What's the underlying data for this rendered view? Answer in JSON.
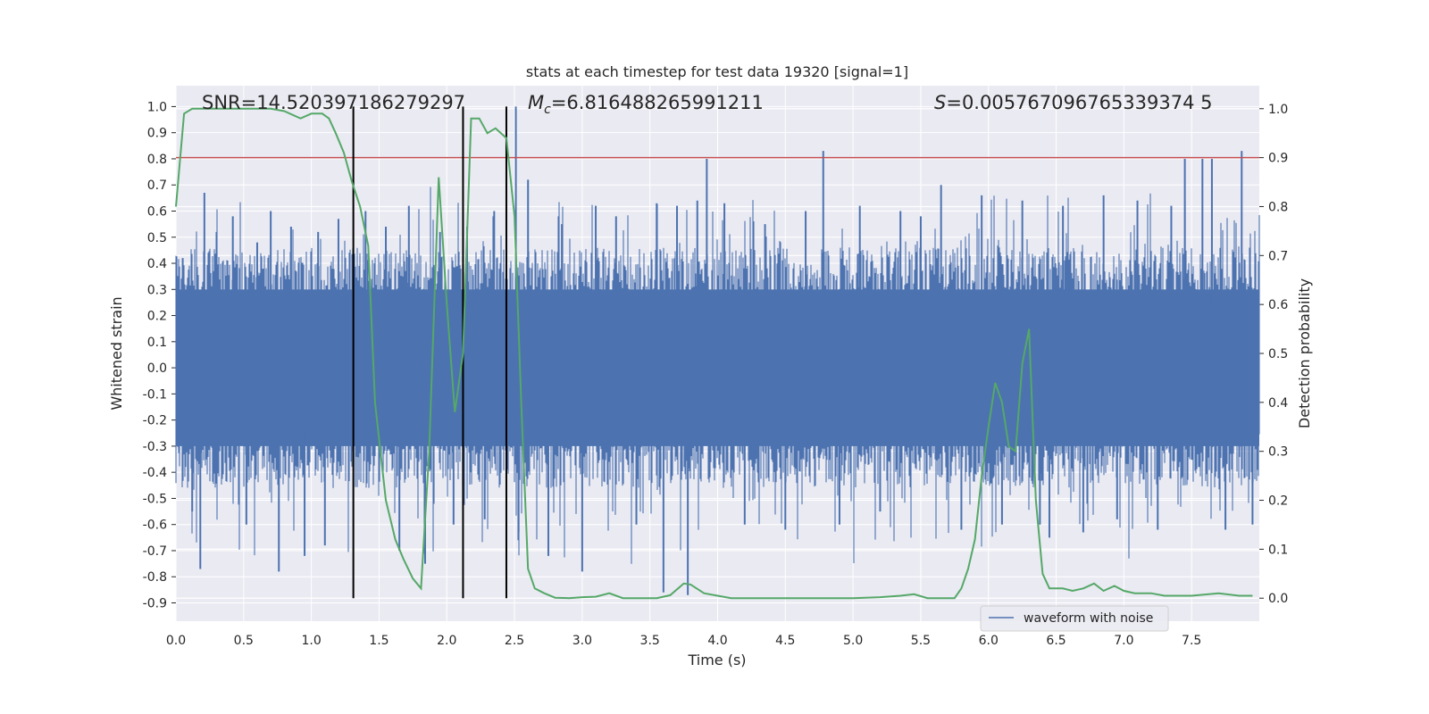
{
  "chart_data": {
    "type": "line",
    "title": "stats at each timestep for test data 19320 [signal=1]",
    "xlabel": "Time (s)",
    "ylabel_left": "Whitened strain",
    "ylabel_right": "Detection probability",
    "xlim": [
      0.0,
      8.0
    ],
    "ylim_left": [
      -0.97,
      1.08
    ],
    "ylim_right": [
      -0.047,
      1.047
    ],
    "x_ticks": [
      "0.0",
      "0.5",
      "1.0",
      "1.5",
      "2.0",
      "2.5",
      "3.0",
      "3.5",
      "4.0",
      "4.5",
      "5.0",
      "5.5",
      "6.0",
      "6.5",
      "7.0",
      "7.5"
    ],
    "y_ticks_left": [
      "1.0",
      "0.9",
      "0.8",
      "0.7",
      "0.6",
      "0.5",
      "0.4",
      "0.3",
      "0.2",
      "0.1",
      "0.0",
      "-0.1",
      "-0.2",
      "-0.3",
      "-0.4",
      "-0.5",
      "-0.6",
      "-0.7",
      "-0.8",
      "-0.9"
    ],
    "y_ticks_right": [
      "1.0",
      "0.9",
      "0.8",
      "0.7",
      "0.6",
      "0.5",
      "0.4",
      "0.3",
      "0.2",
      "0.1",
      "0.0"
    ],
    "grid": true,
    "legend": {
      "location": "lower-right",
      "entries": [
        "waveform with noise"
      ]
    },
    "annotations": {
      "snr": "SNR=14.520397186279297",
      "mc_prefix": "M",
      "mc_sub": "c",
      "mc_value": "=6.816488265991211",
      "s_prefix": "S",
      "s_value": "=0.005767096765339374 5"
    },
    "threshold_line": {
      "axis": "right",
      "value": 0.9,
      "color": "#c44e52"
    },
    "vertical_markers": [
      1.31,
      2.12,
      2.44
    ],
    "series": [
      {
        "name": "waveform with noise",
        "axis": "left",
        "color": "#4c72b0",
        "kind": "dense-noise-envelope",
        "band": [
          -0.3,
          0.3
        ],
        "spikes": [
          {
            "t": 0.05,
            "v": 0.42
          },
          {
            "t": 0.12,
            "v": -0.55
          },
          {
            "t": 0.18,
            "v": -0.77
          },
          {
            "t": 0.21,
            "v": 0.67
          },
          {
            "t": 0.3,
            "v": 0.52
          },
          {
            "t": 0.42,
            "v": 0.58
          },
          {
            "t": 0.52,
            "v": -0.6
          },
          {
            "t": 0.6,
            "v": 0.48
          },
          {
            "t": 0.7,
            "v": 0.6
          },
          {
            "t": 0.76,
            "v": -0.78
          },
          {
            "t": 0.85,
            "v": 0.54
          },
          {
            "t": 0.95,
            "v": -0.72
          },
          {
            "t": 1.05,
            "v": 0.52
          },
          {
            "t": 1.1,
            "v": -0.68
          },
          {
            "t": 1.2,
            "v": 0.57
          },
          {
            "t": 1.4,
            "v": 0.6
          },
          {
            "t": 1.55,
            "v": 0.54
          },
          {
            "t": 1.65,
            "v": -0.7
          },
          {
            "t": 1.72,
            "v": 0.62
          },
          {
            "t": 1.84,
            "v": -0.75
          },
          {
            "t": 1.95,
            "v": 0.52
          },
          {
            "t": 2.05,
            "v": -0.6
          },
          {
            "t": 2.15,
            "v": 0.54
          },
          {
            "t": 2.28,
            "v": -0.58
          },
          {
            "t": 2.35,
            "v": 0.6
          },
          {
            "t": 2.51,
            "v": 1.0
          },
          {
            "t": 2.53,
            "v": -0.63
          },
          {
            "t": 2.6,
            "v": 0.72
          },
          {
            "t": 2.75,
            "v": -0.72
          },
          {
            "t": 2.85,
            "v": 0.55
          },
          {
            "t": 3.0,
            "v": -0.78
          },
          {
            "t": 3.1,
            "v": 0.62
          },
          {
            "t": 3.25,
            "v": 0.58
          },
          {
            "t": 3.4,
            "v": -0.6
          },
          {
            "t": 3.55,
            "v": 0.63
          },
          {
            "t": 3.6,
            "v": -0.86
          },
          {
            "t": 3.7,
            "v": 0.62
          },
          {
            "t": 3.78,
            "v": -0.87
          },
          {
            "t": 3.85,
            "v": 0.64
          },
          {
            "t": 3.92,
            "v": 0.8
          },
          {
            "t": 4.05,
            "v": 0.63
          },
          {
            "t": 4.2,
            "v": -0.6
          },
          {
            "t": 4.35,
            "v": 0.55
          },
          {
            "t": 4.5,
            "v": -0.62
          },
          {
            "t": 4.65,
            "v": 0.6
          },
          {
            "t": 4.78,
            "v": 0.83
          },
          {
            "t": 4.9,
            "v": -0.6
          },
          {
            "t": 5.05,
            "v": 0.62
          },
          {
            "t": 5.2,
            "v": -0.55
          },
          {
            "t": 5.35,
            "v": 0.6
          },
          {
            "t": 5.5,
            "v": 0.58
          },
          {
            "t": 5.65,
            "v": 0.7
          },
          {
            "t": 5.8,
            "v": -0.62
          },
          {
            "t": 5.95,
            "v": 0.66
          },
          {
            "t": 6.1,
            "v": -0.6
          },
          {
            "t": 6.25,
            "v": 0.64
          },
          {
            "t": 6.38,
            "v": -0.6
          },
          {
            "t": 6.45,
            "v": -0.65
          },
          {
            "t": 6.55,
            "v": 0.62
          },
          {
            "t": 6.7,
            "v": -0.63
          },
          {
            "t": 6.85,
            "v": 0.66
          },
          {
            "t": 6.95,
            "v": -0.58
          },
          {
            "t": 7.1,
            "v": 0.64
          },
          {
            "t": 7.25,
            "v": -0.62
          },
          {
            "t": 7.35,
            "v": 0.62
          },
          {
            "t": 7.45,
            "v": 0.8
          },
          {
            "t": 7.58,
            "v": 0.8
          },
          {
            "t": 7.65,
            "v": 0.8
          },
          {
            "t": 7.75,
            "v": -0.62
          },
          {
            "t": 7.87,
            "v": 0.83
          },
          {
            "t": 7.95,
            "v": -0.6
          }
        ]
      },
      {
        "name": "detection probability",
        "axis": "right",
        "color": "#55a868",
        "x": [
          0.0,
          0.06,
          0.12,
          0.3,
          0.5,
          0.7,
          0.8,
          0.92,
          1.0,
          1.08,
          1.13,
          1.18,
          1.24,
          1.3,
          1.36,
          1.42,
          1.47,
          1.55,
          1.62,
          1.68,
          1.75,
          1.81,
          1.87,
          1.94,
          2.0,
          2.06,
          2.12,
          2.18,
          2.24,
          2.3,
          2.36,
          2.44,
          2.5,
          2.55,
          2.6,
          2.65,
          2.72,
          2.8,
          2.9,
          3.0,
          3.1,
          3.2,
          3.3,
          3.45,
          3.55,
          3.65,
          3.75,
          3.8,
          3.9,
          4.0,
          4.1,
          4.2,
          4.4,
          4.6,
          4.8,
          5.0,
          5.2,
          5.35,
          5.45,
          5.55,
          5.65,
          5.75,
          5.8,
          5.85,
          5.9,
          5.95,
          6.0,
          6.05,
          6.1,
          6.15,
          6.2,
          6.25,
          6.3,
          6.35,
          6.4,
          6.45,
          6.5,
          6.55,
          6.62,
          6.7,
          6.78,
          6.85,
          6.93,
          7.0,
          7.08,
          7.15,
          7.2,
          7.3,
          7.5,
          7.7,
          7.85,
          7.95
        ],
        "y": [
          0.8,
          0.99,
          1.0,
          1.0,
          1.0,
          1.0,
          0.995,
          0.98,
          0.99,
          0.99,
          0.98,
          0.95,
          0.91,
          0.85,
          0.8,
          0.72,
          0.4,
          0.2,
          0.12,
          0.08,
          0.04,
          0.02,
          0.3,
          0.86,
          0.6,
          0.38,
          0.5,
          0.98,
          0.98,
          0.95,
          0.96,
          0.94,
          0.78,
          0.4,
          0.06,
          0.02,
          0.01,
          0.001,
          0.0,
          0.002,
          0.003,
          0.01,
          0.0,
          0.0,
          0.0,
          0.006,
          0.03,
          0.028,
          0.01,
          0.005,
          0.0,
          0.0,
          0.0,
          0.0,
          0.0,
          0.0,
          0.002,
          0.005,
          0.008,
          0.0,
          0.0,
          0.0,
          0.02,
          0.06,
          0.12,
          0.25,
          0.35,
          0.44,
          0.4,
          0.31,
          0.3,
          0.48,
          0.55,
          0.2,
          0.05,
          0.02,
          0.02,
          0.02,
          0.015,
          0.02,
          0.03,
          0.015,
          0.025,
          0.015,
          0.01,
          0.01,
          0.01,
          0.005,
          0.005,
          0.01,
          0.005,
          0.005
        ]
      }
    ]
  }
}
